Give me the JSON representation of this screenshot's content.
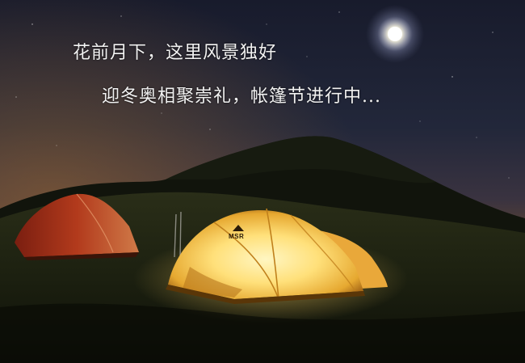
{
  "caption": {
    "line1": "花前月下，这里风景独好",
    "line2": "迎冬奥相聚崇礼，帐篷节进行中..."
  },
  "tent_logo": "MSR",
  "colors": {
    "sky_top": "#1a1d2e",
    "sky_horizon": "#6a4a2c",
    "hill": "#0f120c",
    "grass": "#1f2312",
    "tent_glow": "#ffe27a",
    "tent_red": "#b23a1c",
    "moon": "#ffffff",
    "text": "#f2f2f2"
  }
}
